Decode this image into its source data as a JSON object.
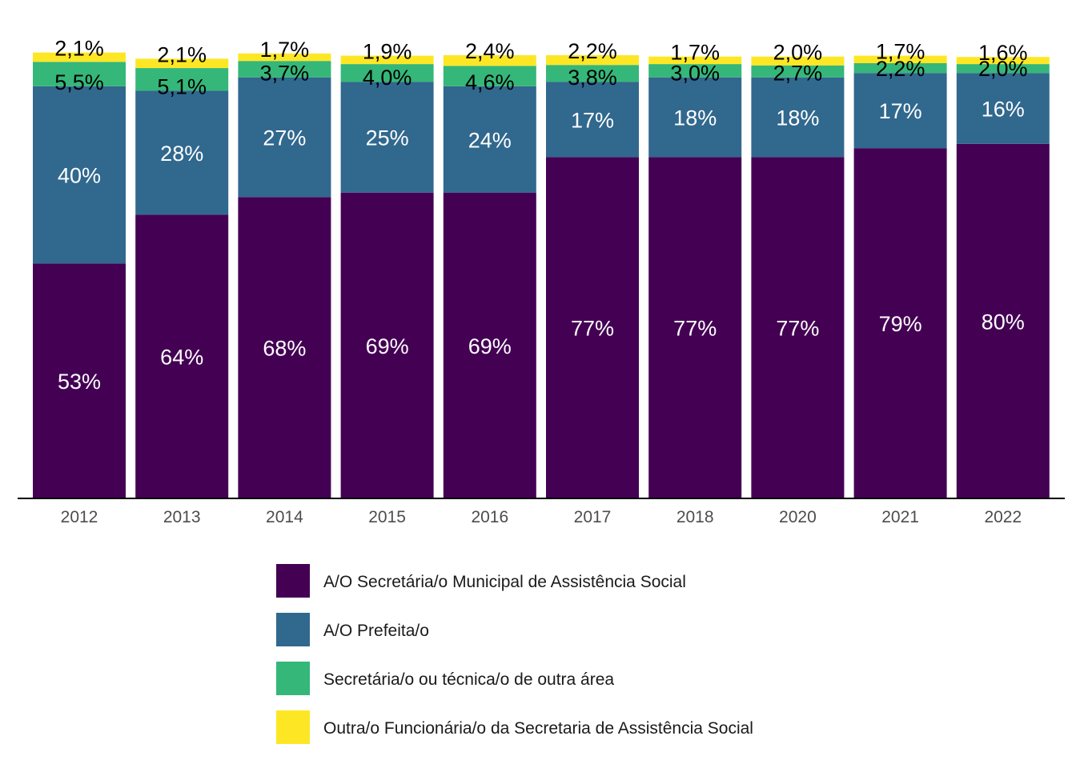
{
  "chart_data": {
    "type": "bar",
    "stacked": true,
    "categories": [
      "2012",
      "2013",
      "2014",
      "2015",
      "2016",
      "2017",
      "2018",
      "2020",
      "2021",
      "2022"
    ],
    "ylim": [
      0,
      100
    ],
    "grid": false,
    "legend_position": "bottom",
    "series": [
      {
        "name": "A/O Secretária/o Municipal de Assistência Social",
        "color": "#440154",
        "values": [
          53,
          64,
          68,
          69,
          69,
          77,
          77,
          77,
          79,
          80
        ],
        "labels": [
          "53%",
          "64%",
          "68%",
          "69%",
          "69%",
          "77%",
          "77%",
          "77%",
          "79%",
          "80%"
        ]
      },
      {
        "name": "A/O Prefeita/o",
        "color": "#31688E",
        "values": [
          40,
          28,
          27,
          25,
          24,
          17,
          18,
          18,
          17,
          16
        ],
        "labels": [
          "40%",
          "28%",
          "27%",
          "25%",
          "24%",
          "17%",
          "18%",
          "18%",
          "17%",
          "16%"
        ]
      },
      {
        "name": "Secretária/o ou técnica/o de outra área",
        "color": "#35B779",
        "values": [
          5.5,
          5.1,
          3.7,
          4.0,
          4.6,
          3.8,
          3.0,
          2.7,
          2.2,
          2.0
        ],
        "labels": [
          "5,5%",
          "5,1%",
          "3,7%",
          "4,0%",
          "4,6%",
          "3,8%",
          "3,0%",
          "2,7%",
          "2,2%",
          "2,0%"
        ]
      },
      {
        "name": "Outra/o Funcionária/o da Secretaria de Assistência Social",
        "color": "#FDE725",
        "values": [
          2.1,
          2.1,
          1.7,
          1.9,
          2.4,
          2.2,
          1.7,
          2.0,
          1.7,
          1.6
        ],
        "labels": [
          "2,1%",
          "2,1%",
          "1,7%",
          "1,9%",
          "2,4%",
          "2,2%",
          "1,7%",
          "2,0%",
          "1,7%",
          "1,6%"
        ]
      }
    ]
  }
}
